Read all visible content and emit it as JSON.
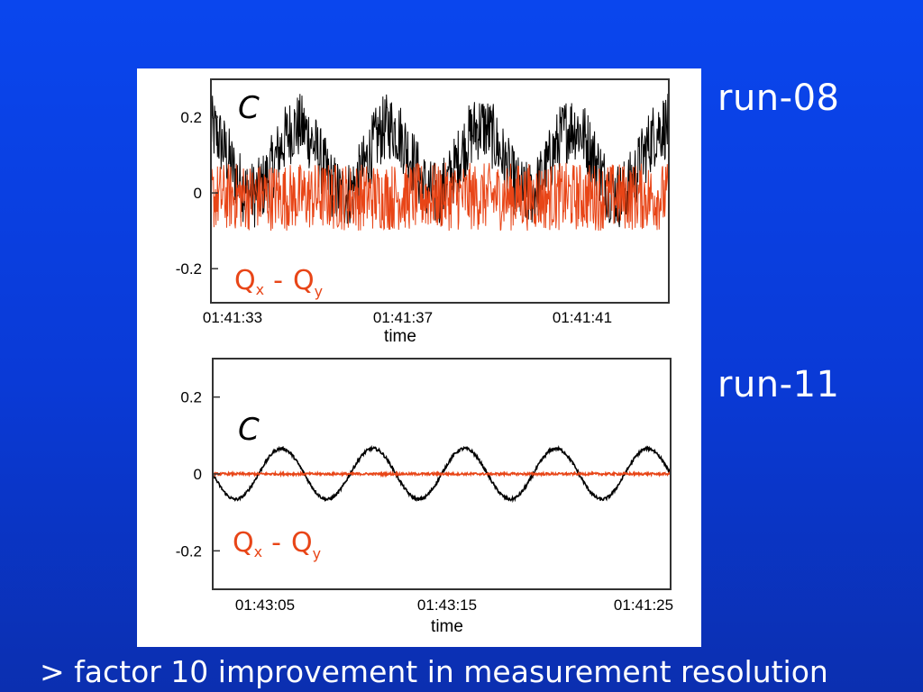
{
  "slide": {
    "run_labels": [
      "run-08",
      "run-11"
    ],
    "caption": "> factor 10 improvement in measurement resolution"
  },
  "colors": {
    "background": "#0a3ad6",
    "series_c": "#000000",
    "series_q": "#e84517",
    "text": "#ffffff"
  },
  "chart_data": [
    {
      "type": "line",
      "title": "",
      "xlabel": "time",
      "ylabel": "",
      "x_ticks": [
        "01:41:33",
        "01:41:37",
        "01:41:41"
      ],
      "y_ticks": [
        "0.2",
        "0",
        "-0.2"
      ],
      "y_tick_values": [
        0.2,
        0,
        -0.2
      ],
      "ylim": [
        -0.29,
        0.3
      ],
      "xlim": [
        0,
        10
      ],
      "grid": false,
      "annotations": {
        "c": "C",
        "q_main": "Q",
        "q_sub1": "x",
        "q_sep": "-",
        "q_sub2": "y"
      },
      "series": [
        {
          "name": "C",
          "color": "#000000",
          "form": "sine",
          "period": 2.0,
          "amplitude": 0.09,
          "offset": 0.085,
          "phase": 0.3,
          "noise": 0.09
        },
        {
          "name": "Qx - Qy",
          "color": "#e84517",
          "form": "noise",
          "offset": -0.01,
          "noise": 0.09
        }
      ]
    },
    {
      "type": "line",
      "title": "",
      "xlabel": "time",
      "ylabel": "",
      "x_ticks": [
        "01:43:05",
        "01:43:15",
        "01:41:25"
      ],
      "y_ticks": [
        "0.2",
        "0",
        "-0.2"
      ],
      "y_tick_values": [
        0.2,
        0,
        -0.2
      ],
      "ylim": [
        -0.3,
        0.3
      ],
      "xlim": [
        0,
        10
      ],
      "grid": false,
      "annotations": {
        "c": "C",
        "q_main": "Q",
        "q_sub1": "x",
        "q_sep": "-",
        "q_sub2": "y"
      },
      "series": [
        {
          "name": "C",
          "color": "#000000",
          "form": "sine",
          "period": 2.0,
          "amplitude": 0.066,
          "offset": 0.0,
          "phase": 0.5,
          "noise": 0.004
        },
        {
          "name": "Qx - Qy",
          "color": "#e84517",
          "form": "noise",
          "offset": 0.0,
          "noise": 0.003
        }
      ]
    }
  ]
}
